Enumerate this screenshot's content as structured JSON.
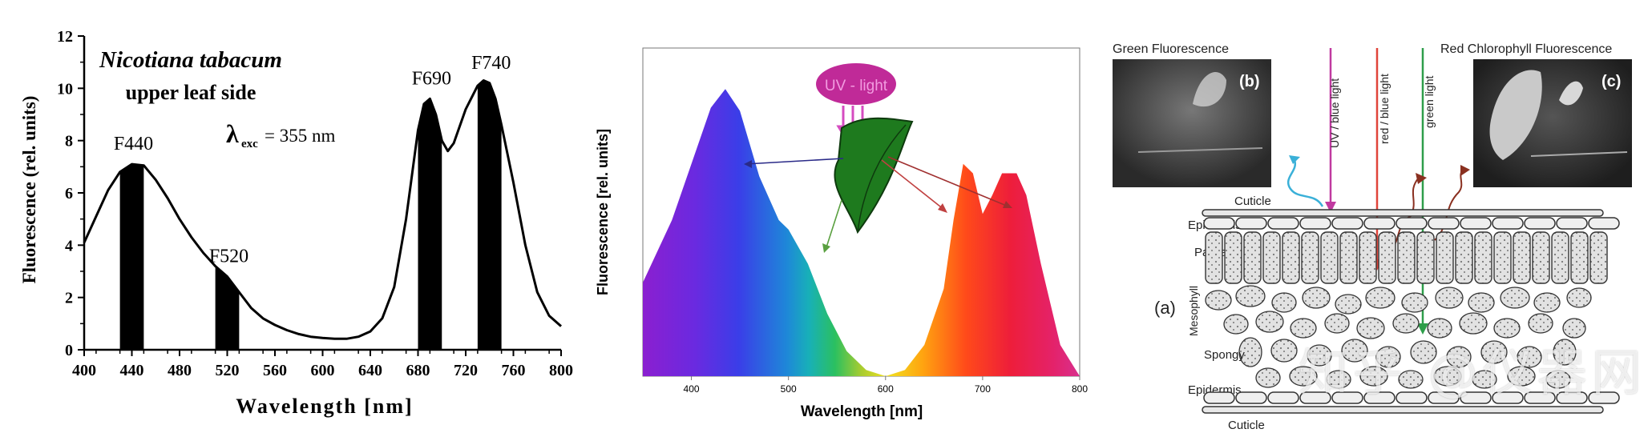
{
  "chart_data": [
    {
      "type": "line",
      "title": "Nicotiana tabacum",
      "subtitle": "upper leaf side",
      "excitation": {
        "symbol": "λ",
        "sub": "exc",
        "value": "= 355 nm"
      },
      "xlabel": "Wavelength [nm]",
      "ylabel": "Fluorescence (rel. units)",
      "xlim": [
        400,
        800
      ],
      "ylim": [
        0,
        12
      ],
      "xticks": [
        400,
        440,
        480,
        520,
        560,
        600,
        640,
        680,
        720,
        760,
        800
      ],
      "yticks": [
        0,
        2,
        4,
        6,
        8,
        10,
        12
      ],
      "series": [
        {
          "x": [
            400,
            410,
            420,
            430,
            440,
            450,
            460,
            470,
            480,
            490,
            500,
            510,
            520,
            530,
            540,
            550,
            560,
            570,
            580,
            590,
            600,
            610,
            620,
            630,
            640,
            650,
            660,
            670,
            680,
            685,
            690,
            695,
            700,
            705,
            710,
            720,
            730,
            735,
            740,
            745,
            750,
            760,
            770,
            780,
            790,
            800
          ],
          "y": [
            4.1,
            5.1,
            6.1,
            6.8,
            7.1,
            7.05,
            6.5,
            5.8,
            5.0,
            4.3,
            3.7,
            3.2,
            2.8,
            2.2,
            1.6,
            1.2,
            0.95,
            0.75,
            0.6,
            0.5,
            0.45,
            0.42,
            0.42,
            0.5,
            0.7,
            1.2,
            2.4,
            5.0,
            8.4,
            9.4,
            9.6,
            9.0,
            8.0,
            7.6,
            7.9,
            9.2,
            10.1,
            10.3,
            10.2,
            9.6,
            8.6,
            6.4,
            4.0,
            2.2,
            1.3,
            0.9
          ]
        }
      ],
      "bands": [
        {
          "label": "F440",
          "x0": 430,
          "x1": 450
        },
        {
          "label": "F520",
          "x0": 510,
          "x1": 530
        },
        {
          "label": "F690",
          "x0": 680,
          "x1": 700
        },
        {
          "label": "F740",
          "x0": 730,
          "x1": 750
        }
      ],
      "grid": false
    },
    {
      "type": "area",
      "xlabel": "Wavelength [nm]",
      "ylabel": "Fluorescence [rel. units]",
      "xlim": [
        350,
        800
      ],
      "ylim": [
        0,
        1
      ],
      "xticks": [
        400,
        500,
        600,
        700,
        800
      ],
      "annotation": "UV - light",
      "series": [
        {
          "x": [
            350,
            380,
            400,
            420,
            435,
            450,
            470,
            490,
            500,
            520,
            540,
            560,
            580,
            600,
            620,
            640,
            660,
            670,
            680,
            690,
            700,
            710,
            720,
            735,
            745,
            760,
            780,
            800
          ],
          "y": [
            0.3,
            0.5,
            0.68,
            0.86,
            0.92,
            0.85,
            0.64,
            0.5,
            0.47,
            0.36,
            0.2,
            0.08,
            0.02,
            0.0,
            0.02,
            0.1,
            0.28,
            0.5,
            0.68,
            0.65,
            0.52,
            0.58,
            0.65,
            0.65,
            0.58,
            0.36,
            0.1,
            0.0
          ]
        }
      ]
    }
  ],
  "figure_c": {
    "title_left": "Green Fluorescence",
    "title_right": "Red Chlorophyll Fluorescence",
    "inset_b": "(b)",
    "inset_c": "(c)",
    "panel_label": "(a)",
    "arrows": [
      "UV / blue light",
      "red / blue light",
      "green light"
    ],
    "layers": [
      "Cuticle",
      "Epidermis",
      "Palisade",
      "Mesophyll",
      "Spongy",
      "Epidermis",
      "Cuticle"
    ],
    "colors": {
      "uv": "#c03aa0",
      "red": "#e0443a",
      "green": "#2e9e4a",
      "cyan": "#3ab0d8",
      "brown": "#8a3020"
    }
  },
  "watermark": "知乎 @仪器网"
}
